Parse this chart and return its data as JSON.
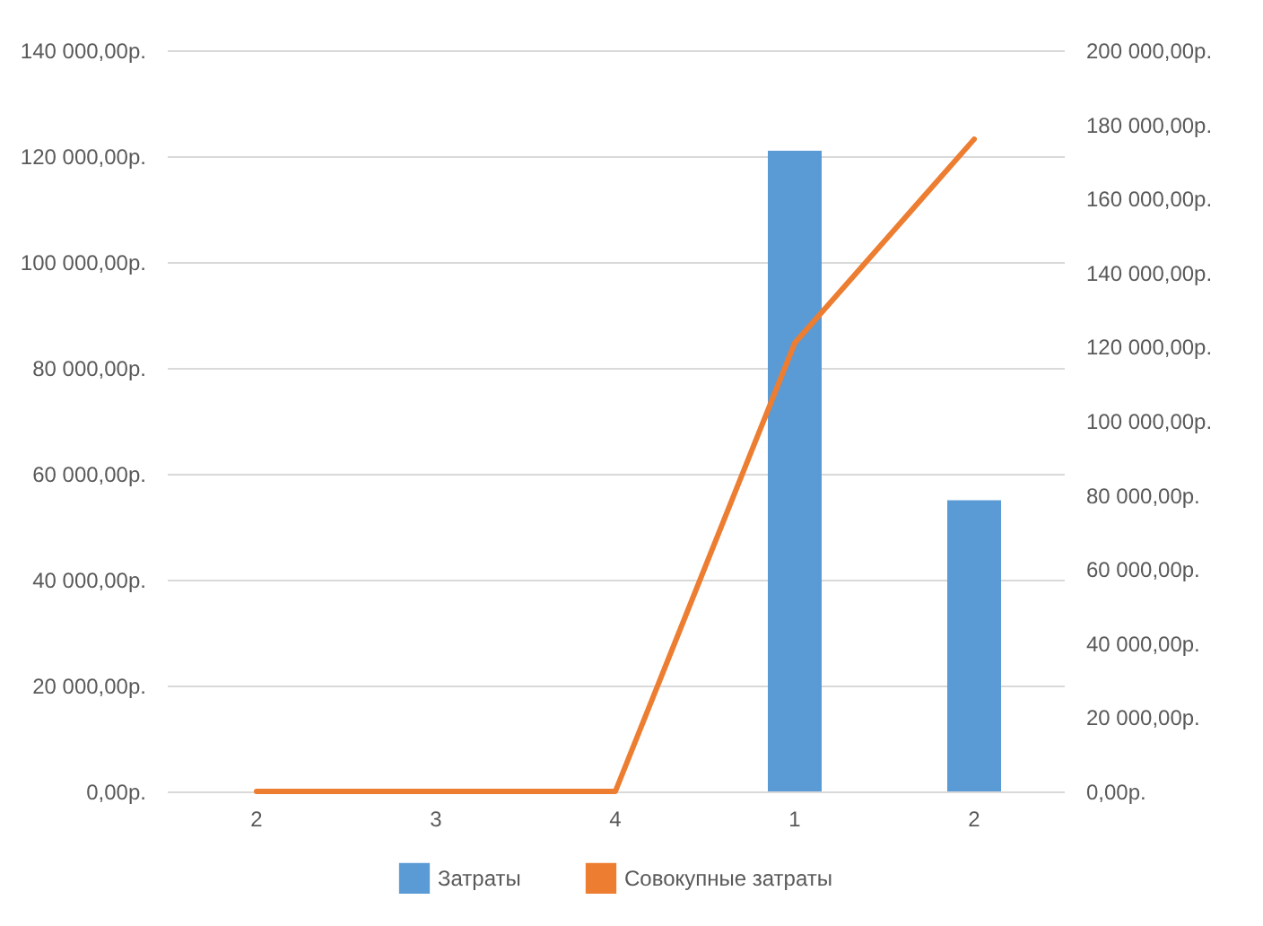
{
  "chart_data": {
    "type": "bar",
    "categories": [
      "2",
      "3",
      "4",
      "1",
      "2"
    ],
    "series": [
      {
        "name": "Затраты",
        "color": "#5b9bd5",
        "values": [
          null,
          null,
          null,
          121000,
          55000
        ]
      },
      {
        "name": "Совокупные затраты",
        "type": "line",
        "axis": "y2",
        "color": "#ed7d31",
        "values": [
          0,
          0,
          0,
          121000,
          176000
        ]
      }
    ],
    "ylim": [
      0,
      140000
    ],
    "yticks": [
      {
        "value": 0,
        "label": "0,00р."
      },
      {
        "value": 20000,
        "label": "20 000,00р."
      },
      {
        "value": 40000,
        "label": "40 000,00р."
      },
      {
        "value": 60000,
        "label": "60 000,00р."
      },
      {
        "value": 80000,
        "label": "80 000,00р."
      },
      {
        "value": 100000,
        "label": "100 000,00р."
      },
      {
        "value": 120000,
        "label": "120 000,00р."
      },
      {
        "value": 140000,
        "label": "140 000,00р."
      }
    ],
    "y2lim": [
      0,
      200000
    ],
    "y2ticks": [
      {
        "value": 0,
        "label": "0,00р."
      },
      {
        "value": 20000,
        "label": "20 000,00р."
      },
      {
        "value": 40000,
        "label": "40 000,00р."
      },
      {
        "value": 60000,
        "label": "60 000,00р."
      },
      {
        "value": 80000,
        "label": "80 000,00р."
      },
      {
        "value": 100000,
        "label": "100 000,00р."
      },
      {
        "value": 120000,
        "label": "120 000,00р."
      },
      {
        "value": 140000,
        "label": "140 000,00р."
      },
      {
        "value": 160000,
        "label": "160 000,00р."
      },
      {
        "value": 180000,
        "label": "180 000,00р."
      },
      {
        "value": 200000,
        "label": "200 000,00р."
      }
    ],
    "grid": "y",
    "legend": "bottom"
  }
}
